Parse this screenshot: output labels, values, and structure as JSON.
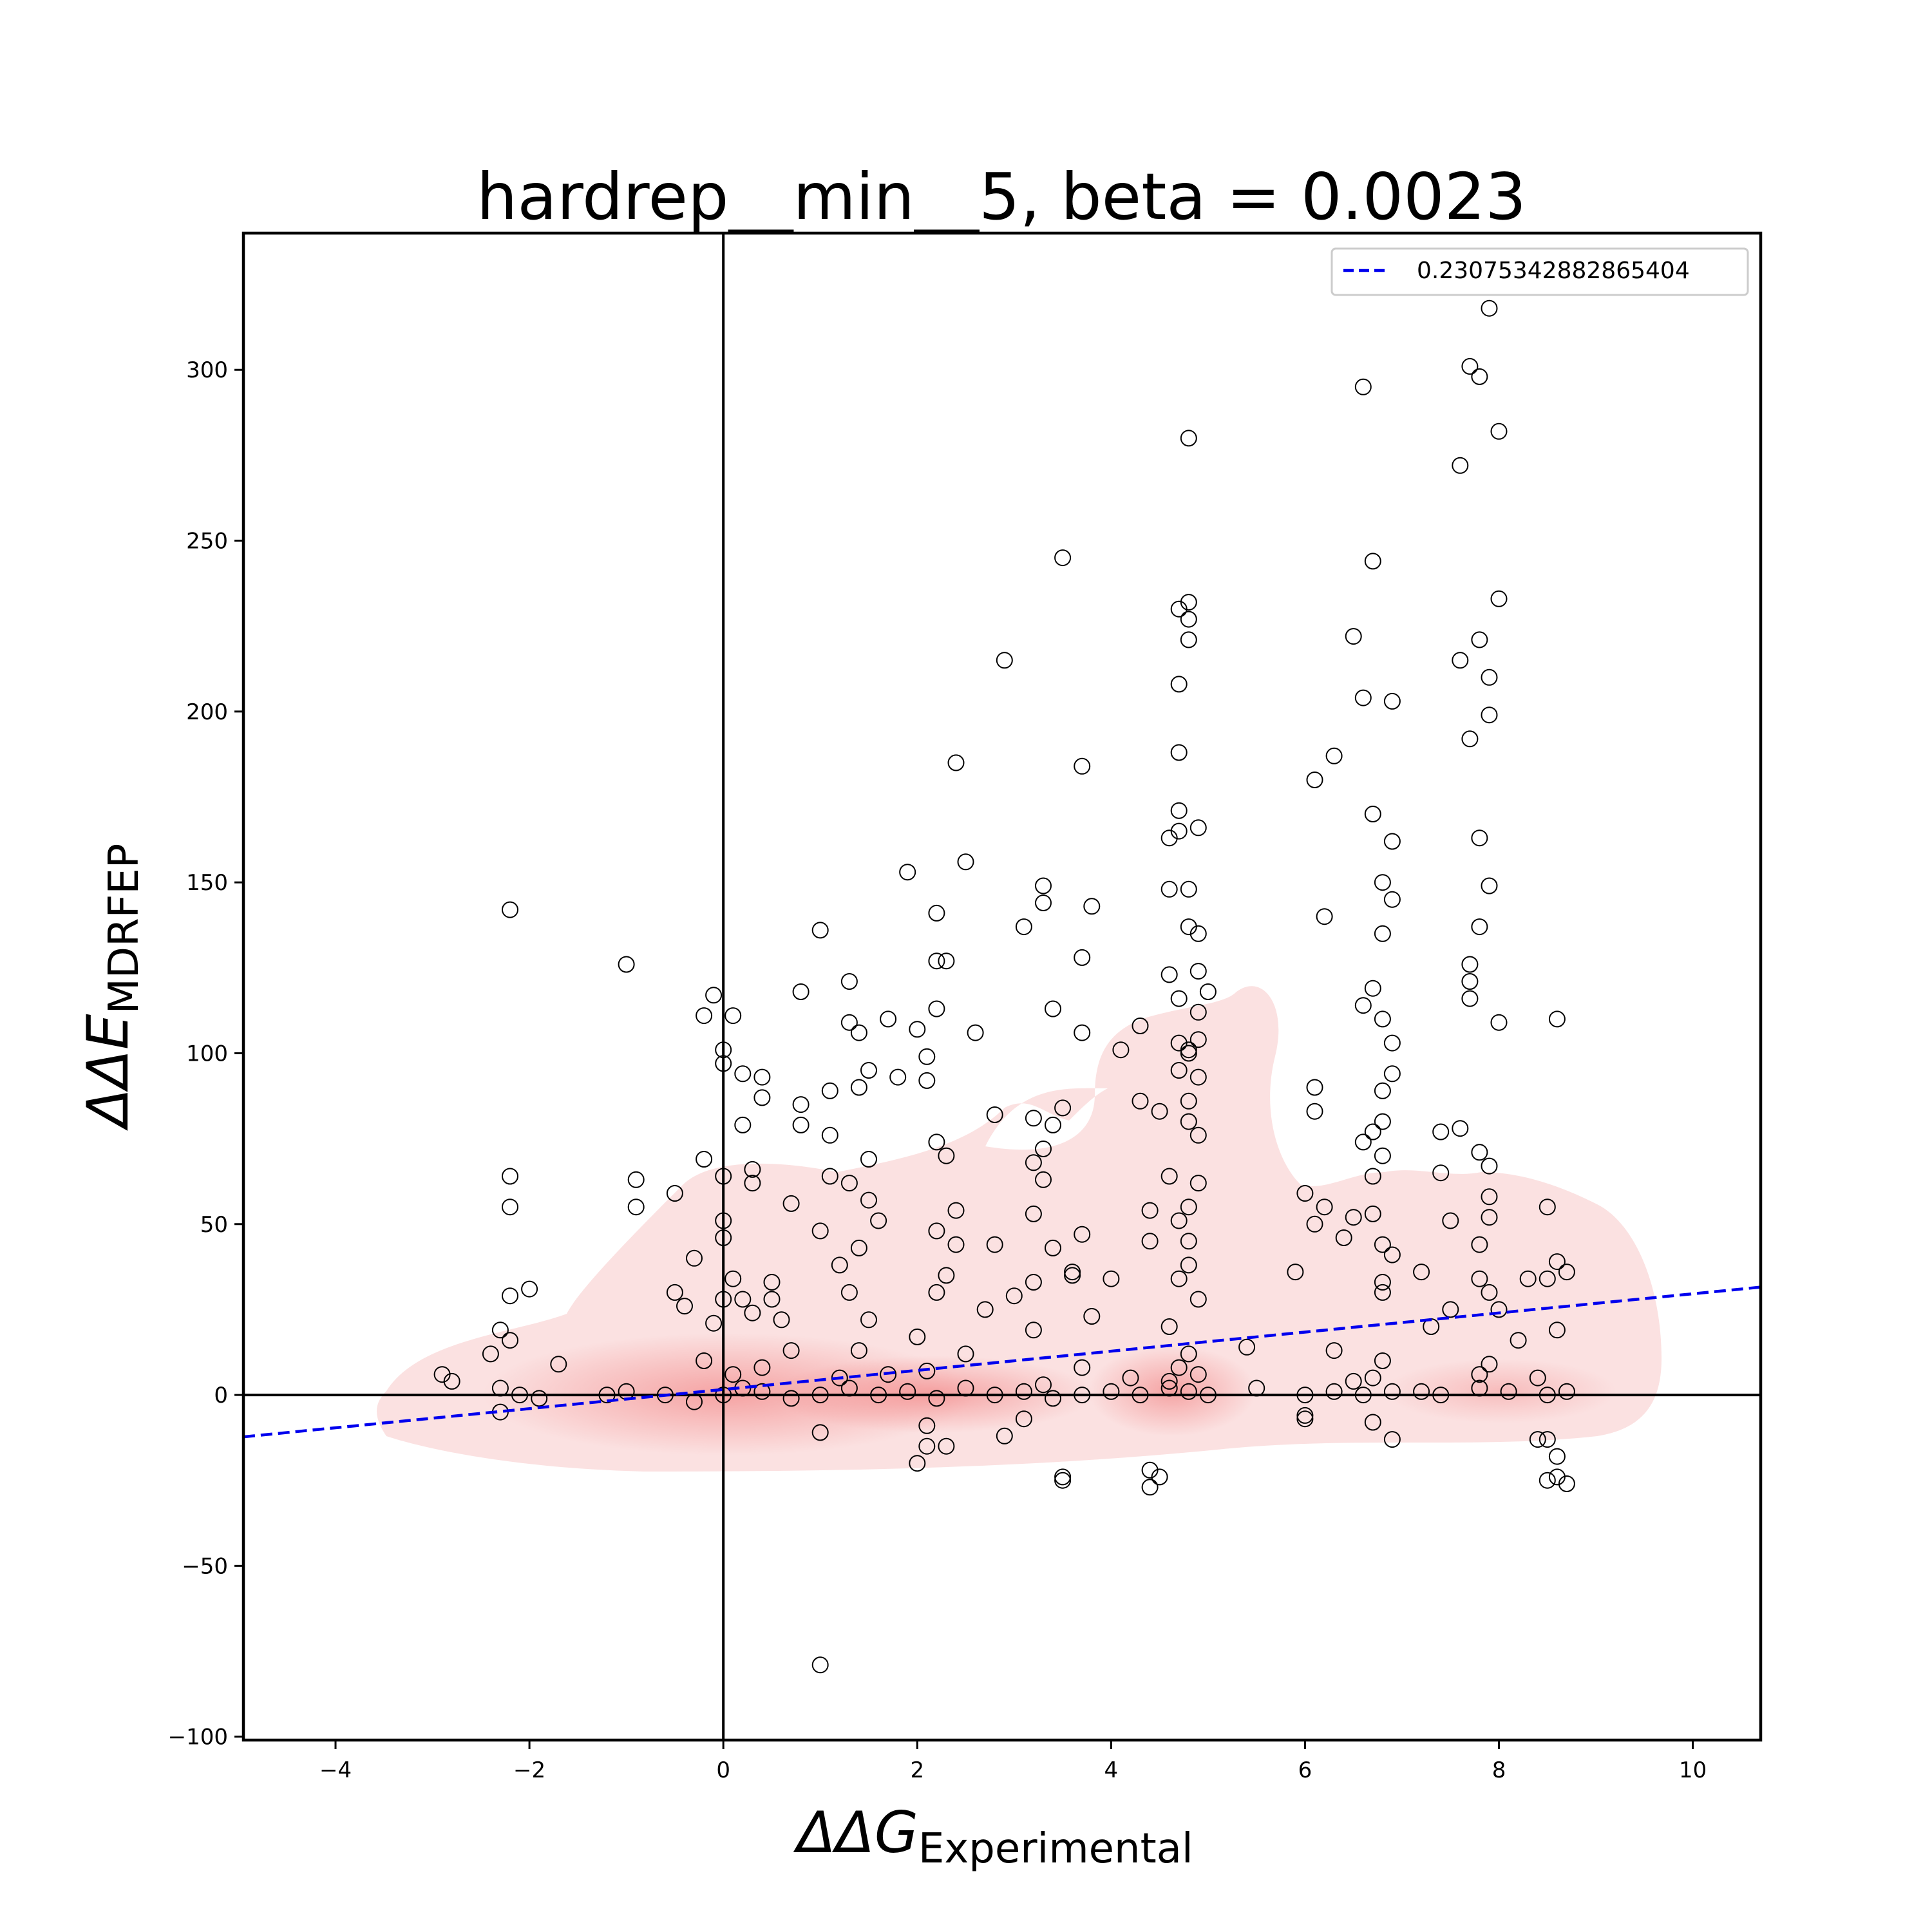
{
  "chart_data": {
    "type": "scatter",
    "title": "hardrep__min__5, beta = 0.0023",
    "xlabel": {
      "main": "ΔΔG",
      "sub": "Experimental"
    },
    "ylabel": {
      "main": "ΔΔE",
      "sub": "MDRFEP"
    },
    "xlim": [
      -4.95,
      10.7
    ],
    "ylim": [
      -101,
      340
    ],
    "x_ticks": [
      -4,
      -2,
      0,
      2,
      4,
      6,
      8,
      10
    ],
    "x_tick_labels": [
      "−4",
      "−2",
      "0",
      "2",
      "4",
      "6",
      "8",
      "10"
    ],
    "y_ticks": [
      -100,
      -50,
      0,
      50,
      100,
      150,
      200,
      250,
      300
    ],
    "y_tick_labels": [
      "−100",
      "−50",
      "0",
      "50",
      "100",
      "150",
      "200",
      "250",
      "300"
    ],
    "reference_lines": {
      "x": 0,
      "y": 0
    },
    "fit_line": {
      "label": "0.23075342882865404",
      "intercept": 1.6,
      "slope": 2.8,
      "style": "dashed",
      "color": "#0000ee"
    },
    "legend_position": "top-right",
    "grid": false,
    "marker": {
      "shape": "open-circle",
      "color": "#000000"
    },
    "density_color": "#f08080",
    "points": [
      [
        -2.2,
        142
      ],
      [
        -1.0,
        126
      ],
      [
        -2.2,
        64
      ],
      [
        -2.2,
        55
      ],
      [
        -0.9,
        63
      ],
      [
        -0.9,
        55
      ],
      [
        -2.0,
        31
      ],
      [
        -2.2,
        29
      ],
      [
        -2.3,
        19
      ],
      [
        -2.4,
        12
      ],
      [
        -2.9,
        6
      ],
      [
        -2.8,
        4
      ],
      [
        -2.2,
        16
      ],
      [
        -1.7,
        9
      ],
      [
        -0.1,
        117
      ],
      [
        -0.2,
        111
      ],
      [
        0.1,
        111
      ],
      [
        0.0,
        101
      ],
      [
        0.0,
        97
      ],
      [
        0.2,
        94
      ],
      [
        0.4,
        93
      ],
      [
        0.4,
        87
      ],
      [
        0.2,
        79
      ],
      [
        -0.2,
        69
      ],
      [
        0.0,
        64
      ],
      [
        0.3,
        66
      ],
      [
        0.3,
        62
      ],
      [
        0.0,
        51
      ],
      [
        0.0,
        46
      ],
      [
        -0.5,
        59
      ],
      [
        -0.3,
        40
      ],
      [
        -0.5,
        30
      ],
      [
        -0.4,
        26
      ],
      [
        0.1,
        34
      ],
      [
        0.2,
        28
      ],
      [
        0.3,
        24
      ],
      [
        0.5,
        33
      ],
      [
        0.6,
        22
      ],
      [
        1.0,
        136
      ],
      [
        0.8,
        118
      ],
      [
        0.8,
        85
      ],
      [
        0.8,
        79
      ],
      [
        1.1,
        89
      ],
      [
        1.1,
        76
      ],
      [
        1.1,
        64
      ],
      [
        1.3,
        121
      ],
      [
        1.3,
        109
      ],
      [
        1.4,
        106
      ],
      [
        1.5,
        95
      ],
      [
        1.4,
        90
      ],
      [
        1.5,
        69
      ],
      [
        1.3,
        62
      ],
      [
        1.5,
        57
      ],
      [
        1.6,
        51
      ],
      [
        1.4,
        43
      ],
      [
        1.2,
        38
      ],
      [
        1.3,
        30
      ],
      [
        1.5,
        22
      ],
      [
        1.7,
        110
      ],
      [
        1.8,
        93
      ],
      [
        1.9,
        153
      ],
      [
        2.0,
        107
      ],
      [
        2.1,
        99
      ],
      [
        2.1,
        92
      ],
      [
        2.2,
        113
      ],
      [
        2.2,
        74
      ],
      [
        2.3,
        70
      ],
      [
        2.2,
        48
      ],
      [
        2.3,
        35
      ],
      [
        2.2,
        30
      ],
      [
        2.2,
        141
      ],
      [
        2.2,
        127
      ],
      [
        2.3,
        127
      ],
      [
        2.4,
        185
      ],
      [
        2.5,
        156
      ],
      [
        2.4,
        54
      ],
      [
        2.4,
        44
      ],
      [
        2.6,
        106
      ],
      [
        2.7,
        25
      ],
      [
        2.9,
        215
      ],
      [
        2.8,
        82
      ],
      [
        2.8,
        44
      ],
      [
        3.0,
        29
      ],
      [
        3.1,
        137
      ],
      [
        3.2,
        81
      ],
      [
        3.2,
        68
      ],
      [
        3.2,
        53
      ],
      [
        3.3,
        149
      ],
      [
        3.3,
        144
      ],
      [
        3.4,
        113
      ],
      [
        3.3,
        72
      ],
      [
        3.3,
        63
      ],
      [
        3.4,
        79
      ],
      [
        3.5,
        84
      ],
      [
        3.4,
        43
      ],
      [
        3.2,
        33
      ],
      [
        3.2,
        19
      ],
      [
        3.5,
        245
      ],
      [
        3.7,
        184
      ],
      [
        3.7,
        106
      ],
      [
        3.7,
        128
      ],
      [
        3.8,
        143
      ],
      [
        3.7,
        47
      ],
      [
        3.6,
        36
      ],
      [
        3.6,
        35
      ],
      [
        3.8,
        23
      ],
      [
        4.0,
        34
      ],
      [
        3.5,
        -25
      ],
      [
        3.5,
        -24
      ],
      [
        4.4,
        -27
      ],
      [
        4.4,
        -22
      ],
      [
        4.5,
        -24
      ],
      [
        4.1,
        101
      ],
      [
        4.3,
        86
      ],
      [
        4.3,
        108
      ],
      [
        4.4,
        54
      ],
      [
        4.4,
        45
      ],
      [
        4.6,
        163
      ],
      [
        4.7,
        188
      ],
      [
        4.7,
        208
      ],
      [
        4.7,
        230
      ],
      [
        4.8,
        227
      ],
      [
        4.8,
        221
      ],
      [
        4.8,
        232
      ],
      [
        4.8,
        280
      ],
      [
        4.9,
        166
      ],
      [
        4.7,
        171
      ],
      [
        4.7,
        165
      ],
      [
        4.6,
        148
      ],
      [
        4.8,
        148
      ],
      [
        4.8,
        137
      ],
      [
        4.9,
        135
      ],
      [
        4.7,
        116
      ],
      [
        4.7,
        103
      ],
      [
        4.8,
        101
      ],
      [
        4.7,
        95
      ],
      [
        4.8,
        86
      ],
      [
        4.9,
        124
      ],
      [
        4.9,
        112
      ],
      [
        5.0,
        118
      ],
      [
        4.8,
        80
      ],
      [
        4.9,
        76
      ],
      [
        4.9,
        62
      ],
      [
        4.7,
        51
      ],
      [
        4.8,
        45
      ],
      [
        4.7,
        34
      ],
      [
        4.9,
        28
      ],
      [
        4.6,
        20
      ],
      [
        4.6,
        123
      ],
      [
        4.5,
        83
      ],
      [
        4.6,
        64
      ],
      [
        4.9,
        104
      ],
      [
        4.8,
        100
      ],
      [
        4.9,
        93
      ],
      [
        4.8,
        55
      ],
      [
        4.8,
        38
      ],
      [
        6.1,
        180
      ],
      [
        6.3,
        187
      ],
      [
        6.5,
        222
      ],
      [
        6.6,
        295
      ],
      [
        6.6,
        204
      ],
      [
        6.7,
        170
      ],
      [
        6.7,
        244
      ],
      [
        6.9,
        203
      ],
      [
        6.9,
        162
      ],
      [
        6.8,
        150
      ],
      [
        6.9,
        145
      ],
      [
        6.8,
        135
      ],
      [
        6.7,
        119
      ],
      [
        6.6,
        114
      ],
      [
        6.8,
        110
      ],
      [
        6.9,
        103
      ],
      [
        6.9,
        94
      ],
      [
        6.8,
        89
      ],
      [
        6.8,
        80
      ],
      [
        6.7,
        77
      ],
      [
        6.6,
        74
      ],
      [
        6.8,
        70
      ],
      [
        6.7,
        64
      ],
      [
        6.2,
        140
      ],
      [
        6.1,
        90
      ],
      [
        6.1,
        83
      ],
      [
        6.0,
        59
      ],
      [
        6.2,
        55
      ],
      [
        6.1,
        50
      ],
      [
        6.4,
        46
      ],
      [
        6.5,
        52
      ],
      [
        6.7,
        53
      ],
      [
        6.8,
        44
      ],
      [
        6.9,
        41
      ],
      [
        6.8,
        33
      ],
      [
        6.8,
        30
      ],
      [
        5.9,
        36
      ],
      [
        7.2,
        36
      ],
      [
        7.6,
        272
      ],
      [
        7.7,
        301
      ],
      [
        7.8,
        298
      ],
      [
        7.9,
        318
      ],
      [
        8.0,
        282
      ],
      [
        8.0,
        233
      ],
      [
        7.8,
        221
      ],
      [
        7.6,
        215
      ],
      [
        7.9,
        210
      ],
      [
        7.9,
        199
      ],
      [
        7.7,
        192
      ],
      [
        7.8,
        163
      ],
      [
        7.9,
        149
      ],
      [
        7.8,
        137
      ],
      [
        7.7,
        126
      ],
      [
        7.7,
        121
      ],
      [
        7.7,
        116
      ],
      [
        8.0,
        109
      ],
      [
        7.4,
        77
      ],
      [
        7.4,
        65
      ],
      [
        7.6,
        78
      ],
      [
        7.8,
        71
      ],
      [
        7.9,
        67
      ],
      [
        7.9,
        58
      ],
      [
        7.9,
        52
      ],
      [
        7.8,
        44
      ],
      [
        7.8,
        34
      ],
      [
        7.9,
        30
      ],
      [
        8.0,
        25
      ],
      [
        8.5,
        55
      ],
      [
        8.6,
        110
      ],
      [
        8.6,
        39
      ],
      [
        8.7,
        36
      ],
      [
        8.5,
        34
      ],
      [
        8.3,
        34
      ],
      [
        8.6,
        19
      ],
      [
        8.4,
        -13
      ],
      [
        8.5,
        -13
      ],
      [
        8.6,
        -18
      ],
      [
        8.5,
        -25
      ],
      [
        8.6,
        -24
      ],
      [
        8.7,
        -26
      ],
      [
        7.5,
        51
      ],
      [
        7.5,
        25
      ],
      [
        2.9,
        -12
      ],
      [
        2.1,
        -9
      ],
      [
        2.0,
        -20
      ],
      [
        2.1,
        -15
      ],
      [
        2.3,
        -15
      ],
      [
        1.0,
        -11
      ],
      [
        1.0,
        -79
      ],
      [
        3.1,
        -7
      ],
      [
        6.9,
        -13
      ],
      [
        6.7,
        -8
      ],
      [
        6.0,
        -6
      ],
      [
        6.0,
        -7
      ],
      [
        -2.3,
        -5
      ],
      [
        0.7,
        56
      ],
      [
        0.5,
        28
      ],
      [
        1.0,
        48
      ],
      [
        -0.1,
        21
      ],
      [
        0.0,
        28
      ],
      [
        0.7,
        13
      ],
      [
        1.4,
        13
      ],
      [
        2.0,
        17
      ],
      [
        2.5,
        12
      ],
      [
        3.7,
        8
      ],
      [
        4.2,
        5
      ],
      [
        5.4,
        14
      ],
      [
        6.3,
        13
      ],
      [
        7.3,
        20
      ],
      [
        8.2,
        16
      ],
      [
        -1.2,
        0
      ],
      [
        -1.0,
        1
      ],
      [
        -0.6,
        0
      ],
      [
        -0.3,
        -2
      ],
      [
        0.0,
        0
      ],
      [
        0.2,
        2
      ],
      [
        0.4,
        1
      ],
      [
        0.7,
        -1
      ],
      [
        1.0,
        0
      ],
      [
        1.3,
        2
      ],
      [
        1.6,
        0
      ],
      [
        1.9,
        1
      ],
      [
        2.2,
        -1
      ],
      [
        2.5,
        2
      ],
      [
        2.8,
        0
      ],
      [
        3.1,
        1
      ],
      [
        3.4,
        -1
      ],
      [
        3.7,
        0
      ],
      [
        4.0,
        1
      ],
      [
        4.3,
        0
      ],
      [
        4.6,
        2
      ],
      [
        4.8,
        1
      ],
      [
        5.0,
        0
      ],
      [
        6.0,
        0
      ],
      [
        6.3,
        1
      ],
      [
        6.6,
        0
      ],
      [
        6.9,
        1
      ],
      [
        7.4,
        0
      ],
      [
        7.8,
        2
      ],
      [
        8.1,
        1
      ],
      [
        8.5,
        0
      ],
      [
        8.7,
        1
      ],
      [
        -2.3,
        2
      ],
      [
        -2.1,
        0
      ],
      [
        -1.9,
        -1
      ],
      [
        4.7,
        8
      ],
      [
        4.9,
        6
      ],
      [
        4.8,
        12
      ],
      [
        4.6,
        4
      ],
      [
        6.8,
        10
      ],
      [
        6.7,
        5
      ],
      [
        7.8,
        6
      ],
      [
        7.9,
        9
      ],
      [
        8.4,
        5
      ],
      [
        0.1,
        6
      ],
      [
        0.4,
        8
      ],
      [
        -0.2,
        10
      ],
      [
        1.7,
        6
      ],
      [
        2.1,
        7
      ],
      [
        1.2,
        5
      ],
      [
        3.3,
        3
      ],
      [
        5.5,
        2
      ],
      [
        6.5,
        4
      ],
      [
        7.2,
        1
      ]
    ]
  }
}
